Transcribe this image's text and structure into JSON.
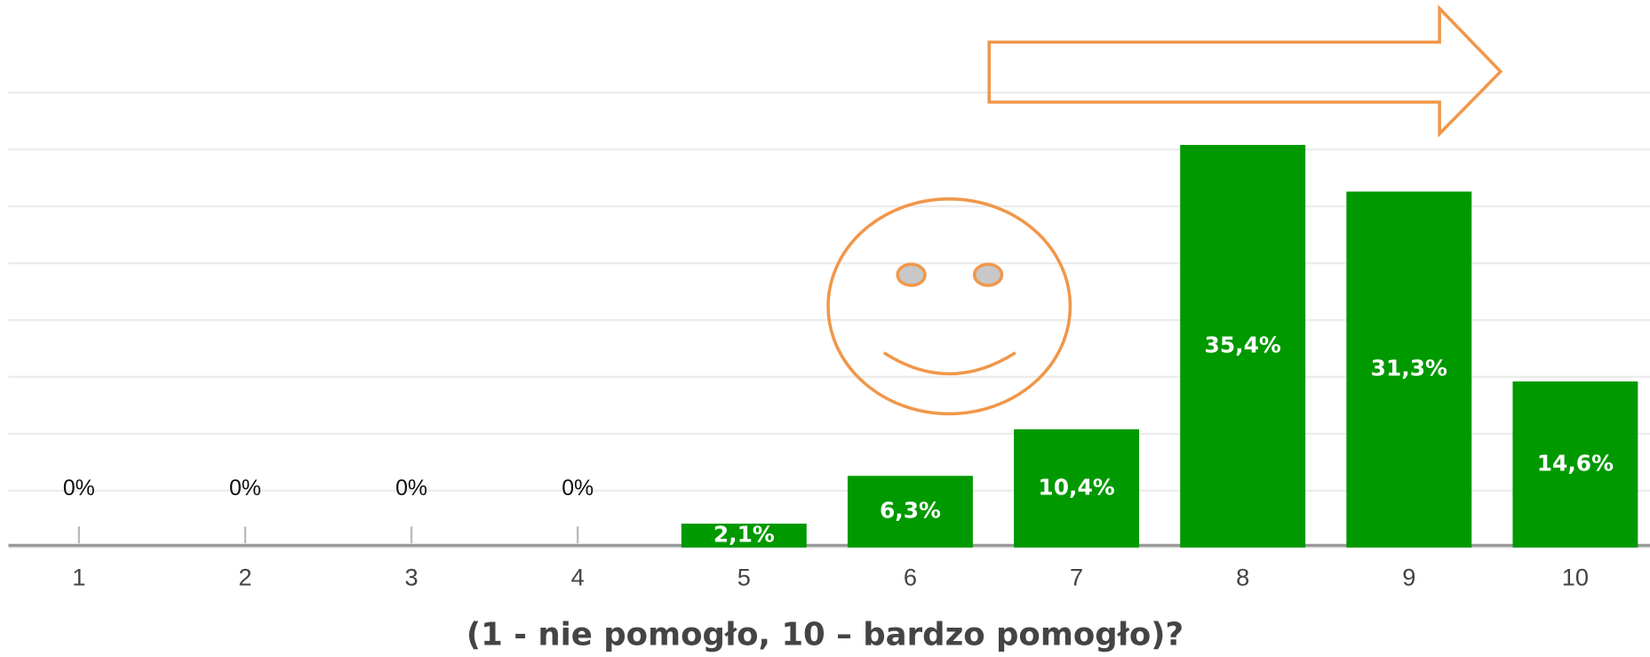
{
  "chart_data": {
    "type": "bar",
    "x_label": "(1 - nie pomogło, 10 – bardzo pomogło)?",
    "categories": [
      "1",
      "2",
      "3",
      "4",
      "5",
      "6",
      "7",
      "8",
      "9",
      "10"
    ],
    "values": [
      0,
      0,
      0,
      0,
      2.1,
      6.3,
      10.4,
      35.4,
      31.3,
      14.6
    ],
    "value_labels": [
      "0%",
      "0%",
      "0%",
      "0%",
      "2,1%",
      "6,3%",
      "10,4%",
      "35,4%",
      "31,3%",
      "14,6%"
    ],
    "color": "#009900",
    "ylim": [
      0,
      40
    ],
    "yticks": [
      0,
      5,
      10,
      15,
      20,
      25,
      30,
      35,
      40
    ],
    "grid": true
  }
}
